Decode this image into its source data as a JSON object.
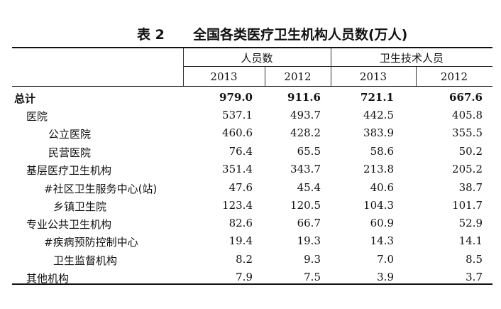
{
  "title": {
    "table_no": "表 2",
    "text": "全国各类医疗卫生机构人员数(万人)"
  },
  "header": {
    "group1": "人员数",
    "group2": "卫生技术人员",
    "years": [
      "2013",
      "2012",
      "2013",
      "2012"
    ]
  },
  "rows": [
    {
      "label": "总计",
      "values": [
        "979.0",
        "911.6",
        "721.1",
        "667.6"
      ]
    },
    {
      "label": "医院",
      "values": [
        "537.1",
        "493.7",
        "442.5",
        "405.8"
      ]
    },
    {
      "label": "公立医院",
      "values": [
        "460.6",
        "428.2",
        "383.9",
        "355.5"
      ]
    },
    {
      "label": "民营医院",
      "values": [
        "76.4",
        "65.5",
        "58.6",
        "50.2"
      ]
    },
    {
      "label": "基层医疗卫生机构",
      "values": [
        "351.4",
        "343.7",
        "213.8",
        "205.2"
      ]
    },
    {
      "label": "#社区卫生服务中心(站)",
      "values": [
        "47.6",
        "45.4",
        "40.6",
        "38.7"
      ]
    },
    {
      "label": "乡镇卫生院",
      "values": [
        "123.4",
        "120.5",
        "104.3",
        "101.7"
      ]
    },
    {
      "label": "专业公共卫生机构",
      "values": [
        "82.6",
        "66.7",
        "60.9",
        "52.9"
      ]
    },
    {
      "label": "#疾病预防控制中心",
      "values": [
        "19.4",
        "19.3",
        "14.3",
        "14.1"
      ]
    },
    {
      "label": "卫生监督机构",
      "values": [
        "8.2",
        "9.3",
        "7.0",
        "8.5"
      ]
    },
    {
      "label": "其他机构",
      "values": [
        "7.9",
        "7.5",
        "3.9",
        "3.7"
      ]
    }
  ]
}
